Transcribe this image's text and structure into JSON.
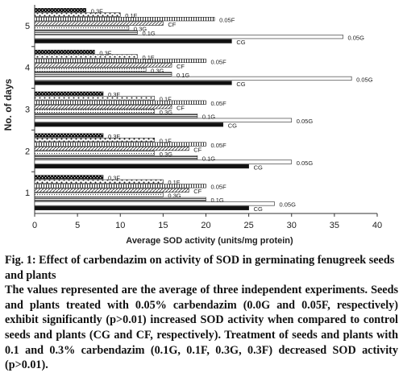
{
  "chart_data": {
    "type": "bar",
    "orientation": "horizontal",
    "xlabel": "Average SOD activity (units/mg protein)",
    "ylabel": "No. of days",
    "xlim": [
      0,
      40
    ],
    "xticks": [
      0,
      5,
      10,
      15,
      20,
      25,
      30,
      35,
      40
    ],
    "categories": [
      "1",
      "2",
      "3",
      "4",
      "5"
    ],
    "series": [
      {
        "name": "CG",
        "color": "#111111",
        "pattern": "solid",
        "values": [
          25,
          25,
          22,
          23,
          23
        ]
      },
      {
        "name": "0.05G",
        "color": "#ffffff",
        "pattern": "open",
        "values": [
          28,
          30,
          30,
          37,
          36
        ]
      },
      {
        "name": "0.1G",
        "color": "#ffffff",
        "pattern": "hbars",
        "values": [
          20,
          19,
          19,
          16,
          12
        ]
      },
      {
        "name": "0.3G",
        "color": "#ffffff",
        "pattern": "dots",
        "values": [
          15,
          14,
          14,
          13,
          11
        ]
      },
      {
        "name": "CF",
        "color": "#ffffff",
        "pattern": "diag",
        "values": [
          18,
          18,
          16,
          16,
          15
        ]
      },
      {
        "name": "0.05F",
        "color": "#ffffff",
        "pattern": "vbars",
        "values": [
          20,
          20,
          20,
          20,
          21
        ]
      },
      {
        "name": "0.1F",
        "color": "#ffffff",
        "pattern": "checker",
        "values": [
          15,
          14,
          14,
          12,
          10
        ]
      },
      {
        "name": "0.3F",
        "color": "#111111",
        "pattern": "darkchecker",
        "values": [
          8,
          8,
          8,
          7,
          6
        ]
      }
    ]
  },
  "caption": {
    "title": "Fig. 1: Effect of carbendazim on activity of SOD in germinating fenugreek seeds and plants",
    "description": "The values represented are the average of three independent experiments. Seeds and plants treated with 0.05% carbendazim (0.0G and 0.05F, respectively) exhibit significantly (p>0.01) increased SOD activity when compared to control seeds and plants (CG and CF, respectively). Treatment of seeds and plants with 0.1 and 0.3% carbendazim (0.1G, 0.1F, 0.3G, 0.3F) decreased SOD activity (p>0.01)."
  }
}
